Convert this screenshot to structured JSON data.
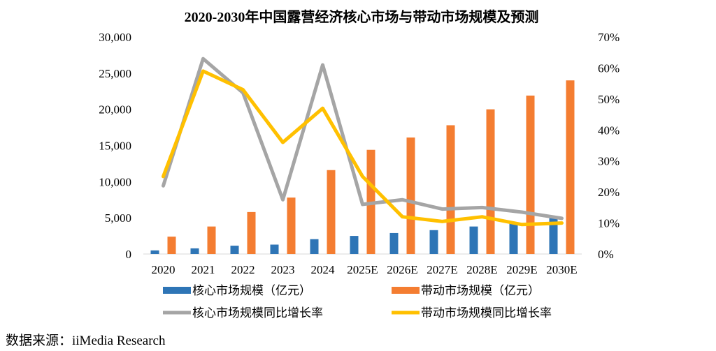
{
  "chart_data": {
    "type": "bar",
    "title": "2020-2030年中国露营经济核心市场与带动市场规模及预测",
    "categories": [
      "2020",
      "2021",
      "2022",
      "2023",
      "2024",
      "2025E",
      "2026E",
      "2027E",
      "2028E",
      "2029E",
      "2030E"
    ],
    "series": [
      {
        "name": "核心市场规模（亿元）",
        "kind": "bar",
        "axis": "left",
        "color": "#2E75B6",
        "values": [
          500,
          780,
          1150,
          1300,
          2050,
          2500,
          2900,
          3300,
          3800,
          4350,
          4950
        ]
      },
      {
        "name": "带动市场规模（亿元）",
        "kind": "bar",
        "axis": "left",
        "color": "#F47D31",
        "values": [
          2400,
          3800,
          5800,
          7800,
          11600,
          14400,
          16100,
          17800,
          20000,
          21900,
          24000
        ]
      },
      {
        "name": "核心市场规模同比增长率",
        "kind": "line",
        "axis": "right",
        "color": "#A5A5A5",
        "values": [
          22,
          63,
          52,
          17.5,
          61,
          16,
          17.5,
          14.5,
          15,
          13.5,
          11.5
        ]
      },
      {
        "name": "带动市场规模同比增长率",
        "kind": "line",
        "axis": "right",
        "color": "#FFC000",
        "values": [
          25,
          59,
          53,
          36,
          47,
          25,
          12,
          10.5,
          12,
          9.5,
          10
        ]
      }
    ],
    "y_left": {
      "min": 0,
      "max": 30000,
      "ticks": [
        "0",
        "5,000",
        "10,000",
        "15,000",
        "20,000",
        "25,000",
        "30,000"
      ]
    },
    "y_right": {
      "min": 0,
      "max": 70,
      "ticks": [
        "0%",
        "10%",
        "20%",
        "30%",
        "40%",
        "50%",
        "60%",
        "70%"
      ]
    },
    "grid": false,
    "legend_position": "bottom"
  },
  "source": "数据来源：iiMedia Research"
}
